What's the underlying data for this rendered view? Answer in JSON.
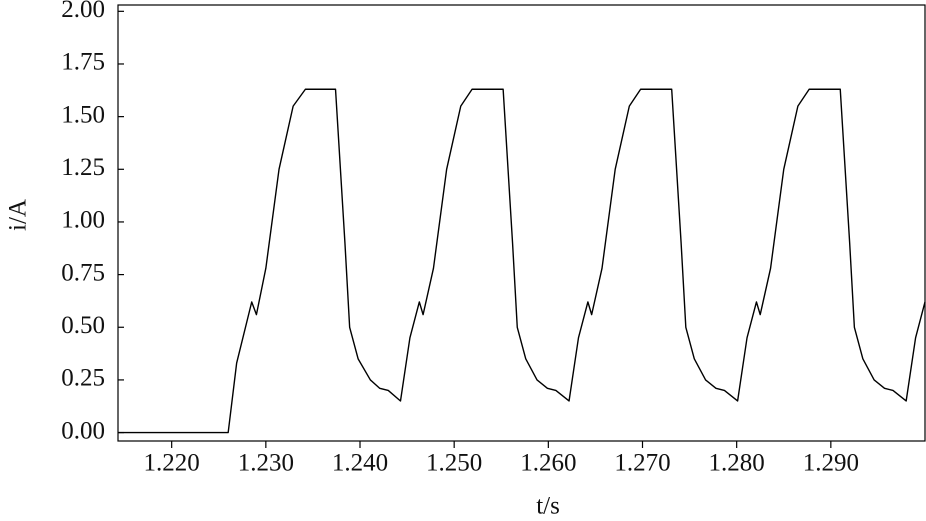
{
  "chart_data": {
    "type": "line",
    "x_label": "t/s",
    "y_label": "i/A",
    "xlim": [
      1.2143,
      1.3
    ],
    "ylim": [
      -0.04,
      2.03
    ],
    "xticks": [
      {
        "value": 1.22,
        "label": "1.220"
      },
      {
        "value": 1.23,
        "label": "1.230"
      },
      {
        "value": 1.24,
        "label": "1.240"
      },
      {
        "value": 1.25,
        "label": "1.250"
      },
      {
        "value": 1.26,
        "label": "1.260"
      },
      {
        "value": 1.27,
        "label": "1.270"
      },
      {
        "value": 1.28,
        "label": "1.280"
      },
      {
        "value": 1.29,
        "label": "1.290"
      }
    ],
    "yticks": [
      {
        "value": 0,
        "label": "0.00"
      },
      {
        "value": 0.25,
        "label": "0.25"
      },
      {
        "value": 0.5,
        "label": "0.50"
      },
      {
        "value": 0.75,
        "label": "0.75"
      },
      {
        "value": 1,
        "label": "1.00"
      },
      {
        "value": 1.25,
        "label": "1.25"
      },
      {
        "value": 1.5,
        "label": "1.50"
      },
      {
        "value": 1.75,
        "label": "1.75"
      },
      {
        "value": 2,
        "label": "2.00"
      }
    ],
    "series": [
      {
        "color": "#000000",
        "x": [
          1.2143,
          1.226,
          1.2269,
          1.2285,
          1.229,
          1.23,
          1.2314,
          1.2329,
          1.2342,
          1.2374,
          1.2384,
          1.2389,
          1.2398,
          1.2411,
          1.2421,
          1.243,
          1.2443,
          1.2453,
          1.2463,
          1.2467,
          1.2478,
          1.2492,
          1.2507,
          1.2519,
          1.2552,
          1.2562,
          1.2567,
          1.2576,
          1.2588,
          1.2599,
          1.2608,
          1.2622,
          1.2632,
          1.2642,
          1.2646,
          1.2657,
          1.2671,
          1.2686,
          1.2698,
          1.2731,
          1.2741,
          1.2746,
          1.2755,
          1.2767,
          1.2778,
          1.2787,
          1.2801,
          1.2811,
          1.2821,
          1.2825,
          1.2836,
          1.285,
          1.2865,
          1.2877,
          1.291,
          1.292,
          1.2925,
          1.2934,
          1.2946,
          1.2957,
          1.2966,
          1.298,
          1.299,
          1.3
        ],
        "values": [
          0,
          0,
          0.33,
          0.62,
          0.56,
          0.78,
          1.25,
          1.55,
          1.63,
          1.63,
          0.9,
          0.5,
          0.35,
          0.25,
          0.21,
          0.2,
          0.15,
          0.45,
          0.62,
          0.56,
          0.78,
          1.25,
          1.55,
          1.63,
          1.63,
          0.9,
          0.5,
          0.35,
          0.25,
          0.21,
          0.2,
          0.15,
          0.45,
          0.62,
          0.56,
          0.78,
          1.25,
          1.55,
          1.63,
          1.63,
          0.9,
          0.5,
          0.35,
          0.25,
          0.21,
          0.2,
          0.15,
          0.45,
          0.62,
          0.56,
          0.78,
          1.25,
          1.55,
          1.63,
          1.63,
          0.9,
          0.5,
          0.35,
          0.25,
          0.21,
          0.2,
          0.15,
          0.45,
          0.62
        ]
      }
    ]
  }
}
